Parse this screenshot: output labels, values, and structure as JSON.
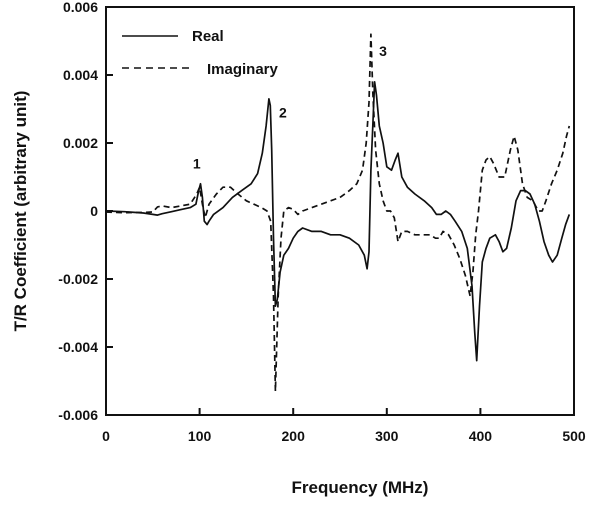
{
  "chart_data": {
    "type": "line",
    "title": "",
    "xlabel": "Frequency (MHz)",
    "ylabel": "T/R Coefficient (arbitrary unit)",
    "xlim": [
      0,
      500
    ],
    "ylim": [
      -0.006,
      0.006
    ],
    "x_ticks": [
      0,
      100,
      200,
      300,
      400,
      500
    ],
    "x_tick_labels": [
      "0",
      "100",
      "200",
      "300",
      "400",
      "500"
    ],
    "y_ticks": [
      -0.006,
      -0.004,
      -0.002,
      0,
      0.002,
      0.004,
      0.006
    ],
    "y_tick_labels": [
      "-0.006",
      "-0.004",
      "-0.002",
      "0",
      "0.002",
      "0.004",
      "0.006"
    ],
    "grid": false,
    "legend_position": "top-left",
    "series": [
      {
        "name": "Real",
        "style": "solid",
        "color": "#111111",
        "points": [
          [
            0,
            0.0
          ],
          [
            20,
            -2e-05
          ],
          [
            40,
            -6e-05
          ],
          [
            50,
            -0.0001
          ],
          [
            55,
            -0.00012
          ],
          [
            60,
            -8e-05
          ],
          [
            70,
            -2e-05
          ],
          [
            80,
            4e-05
          ],
          [
            90,
            0.0001
          ],
          [
            96,
            0.0002
          ],
          [
            99,
            0.0006
          ],
          [
            101,
            0.0008
          ],
          [
            103,
            0.0004
          ],
          [
            105,
            -0.0003
          ],
          [
            108,
            -0.0004
          ],
          [
            110,
            -0.0003
          ],
          [
            115,
            -0.0001
          ],
          [
            125,
            0.0001
          ],
          [
            135,
            0.0004
          ],
          [
            145,
            0.0006
          ],
          [
            155,
            0.0008
          ],
          [
            162,
            0.0011
          ],
          [
            167,
            0.0017
          ],
          [
            171,
            0.0025
          ],
          [
            174,
            0.0033
          ],
          [
            175.5,
            0.0031
          ],
          [
            177,
            0.0018
          ],
          [
            179,
            -0.0008
          ],
          [
            181,
            -0.0028
          ],
          [
            183,
            -0.0026
          ],
          [
            186,
            -0.0018
          ],
          [
            190,
            -0.0013
          ],
          [
            195,
            -0.0011
          ],
          [
            200,
            -0.0008
          ],
          [
            205,
            -0.0006
          ],
          [
            210,
            -0.0005
          ],
          [
            220,
            -0.0006
          ],
          [
            230,
            -0.0006
          ],
          [
            240,
            -0.0007
          ],
          [
            250,
            -0.0007
          ],
          [
            260,
            -0.0008
          ],
          [
            270,
            -0.001
          ],
          [
            276,
            -0.0013
          ],
          [
            279,
            -0.0017
          ],
          [
            281,
            -0.0012
          ],
          [
            283,
            0.0012
          ],
          [
            285,
            0.0025
          ],
          [
            287,
            0.0038
          ],
          [
            289,
            0.0034
          ],
          [
            292,
            0.0025
          ],
          [
            296,
            0.002
          ],
          [
            300,
            0.0013
          ],
          [
            305,
            0.0012
          ],
          [
            309,
            0.0015
          ],
          [
            312,
            0.0017
          ],
          [
            316,
            0.001
          ],
          [
            322,
            0.0007
          ],
          [
            330,
            0.0005
          ],
          [
            340,
            0.0003
          ],
          [
            348,
            0.0001
          ],
          [
            353,
            -0.0001
          ],
          [
            358,
            -0.0001
          ],
          [
            363,
            0.0
          ],
          [
            368,
            -0.0001
          ],
          [
            373,
            -0.0003
          ],
          [
            380,
            -0.0006
          ],
          [
            386,
            -0.0011
          ],
          [
            391,
            -0.0022
          ],
          [
            394,
            -0.0036
          ],
          [
            396,
            -0.0044
          ],
          [
            399,
            -0.0028
          ],
          [
            402,
            -0.0015
          ],
          [
            406,
            -0.0011
          ],
          [
            410,
            -0.0008
          ],
          [
            416,
            -0.0007
          ],
          [
            420,
            -0.0009
          ],
          [
            424,
            -0.0012
          ],
          [
            428,
            -0.0011
          ],
          [
            433,
            -0.0005
          ],
          [
            438,
            0.0003
          ],
          [
            443,
            0.0006
          ],
          [
            448,
            0.0006
          ],
          [
            453,
            0.0005
          ],
          [
            458,
            0.0002
          ],
          [
            463,
            -0.0003
          ],
          [
            468,
            -0.0009
          ],
          [
            473,
            -0.0013
          ],
          [
            477,
            -0.0015
          ],
          [
            482,
            -0.0013
          ],
          [
            487,
            -0.0008
          ],
          [
            491,
            -0.0004
          ],
          [
            495,
            -0.0001
          ]
        ]
      },
      {
        "name": "Imaginary",
        "style": "dashed",
        "color": "#111111",
        "points": [
          [
            0,
            -3e-05
          ],
          [
            20,
            -5e-05
          ],
          [
            40,
            -4e-05
          ],
          [
            50,
            -3e-05
          ],
          [
            55,
            0.00012
          ],
          [
            60,
            0.00015
          ],
          [
            70,
            0.0001
          ],
          [
            80,
            0.00015
          ],
          [
            90,
            0.0002
          ],
          [
            97,
            0.0005
          ],
          [
            100,
            0.0007
          ],
          [
            103,
            0.0002
          ],
          [
            106,
            -0.0002
          ],
          [
            110,
            0.0002
          ],
          [
            118,
            0.0005
          ],
          [
            125,
            0.0007
          ],
          [
            133,
            0.0007
          ],
          [
            141,
            0.0005
          ],
          [
            150,
            0.0003
          ],
          [
            158,
            0.0002
          ],
          [
            166,
            0.0001
          ],
          [
            172,
            0.0
          ],
          [
            176,
            -0.0003
          ],
          [
            179,
            -0.0025
          ],
          [
            181,
            -0.0053
          ],
          [
            184,
            -0.0025
          ],
          [
            187,
            -0.0008
          ],
          [
            190,
            0.0
          ],
          [
            195,
            0.0001
          ],
          [
            200,
            5e-05
          ],
          [
            205,
            -0.0001
          ],
          [
            210,
            0.0
          ],
          [
            220,
            0.0001
          ],
          [
            230,
            0.0002
          ],
          [
            240,
            0.0003
          ],
          [
            250,
            0.0004
          ],
          [
            260,
            0.0006
          ],
          [
            268,
            0.0008
          ],
          [
            274,
            0.0012
          ],
          [
            278,
            0.002
          ],
          [
            281,
            0.0032
          ],
          [
            283,
            0.0052
          ],
          [
            285,
            0.0035
          ],
          [
            288,
            0.0018
          ],
          [
            292,
            0.0008
          ],
          [
            296,
            0.0003
          ],
          [
            300,
            0.0
          ],
          [
            304,
            0.0
          ],
          [
            308,
            -0.0002
          ],
          [
            312,
            -0.0009
          ],
          [
            316,
            -0.0006
          ],
          [
            322,
            -0.0006
          ],
          [
            330,
            -0.0007
          ],
          [
            338,
            -0.0007
          ],
          [
            346,
            -0.0007
          ],
          [
            352,
            -0.0008
          ],
          [
            356,
            -0.0008
          ],
          [
            360,
            -0.0006
          ],
          [
            366,
            -0.0007
          ],
          [
            372,
            -0.001
          ],
          [
            378,
            -0.0014
          ],
          [
            384,
            -0.0019
          ],
          [
            389,
            -0.0025
          ],
          [
            392,
            -0.0018
          ],
          [
            395,
            -0.0007
          ],
          [
            398,
            0.0
          ],
          [
            402,
            0.0012
          ],
          [
            406,
            0.0015
          ],
          [
            410,
            0.0016
          ],
          [
            414,
            0.0014
          ],
          [
            420,
            0.001
          ],
          [
            426,
            0.001
          ],
          [
            432,
            0.0018
          ],
          [
            436,
            0.0022
          ],
          [
            440,
            0.0018
          ],
          [
            445,
            0.0008
          ],
          [
            450,
            0.0004
          ],
          [
            456,
            0.0003
          ],
          [
            462,
            0.0
          ],
          [
            466,
            0.0
          ],
          [
            470,
            0.0003
          ],
          [
            476,
            0.0008
          ],
          [
            482,
            0.0012
          ],
          [
            488,
            0.0017
          ],
          [
            492,
            0.0022
          ],
          [
            495,
            0.0025
          ]
        ]
      }
    ],
    "annotations": [
      {
        "text": "1",
        "x": 97,
        "y": 0.0014
      },
      {
        "text": "2",
        "x": 189,
        "y": 0.0029
      },
      {
        "text": "3",
        "x": 296,
        "y": 0.0047
      }
    ]
  }
}
